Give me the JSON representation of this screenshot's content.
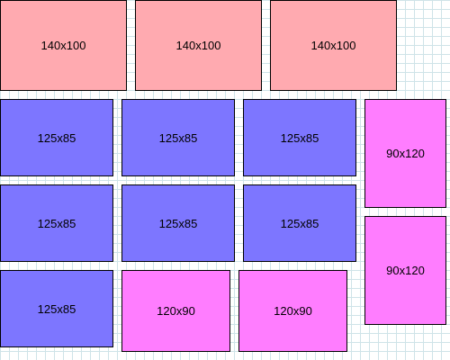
{
  "colors": {
    "row1": "#ffaab0",
    "blue": "#7d76ff",
    "magenta": "#ff7dff",
    "grid": "#cfe3e8"
  },
  "boxes": [
    {
      "label": "140x100"
    },
    {
      "label": "140x100"
    },
    {
      "label": "140x100"
    },
    {
      "label": "125x85"
    },
    {
      "label": "125x85"
    },
    {
      "label": "125x85"
    },
    {
      "label": "90x120"
    },
    {
      "label": "125x85"
    },
    {
      "label": "125x85"
    },
    {
      "label": "125x85"
    },
    {
      "label": "90x120"
    },
    {
      "label": "125x85"
    },
    {
      "label": "120x90"
    },
    {
      "label": "120x90"
    }
  ]
}
